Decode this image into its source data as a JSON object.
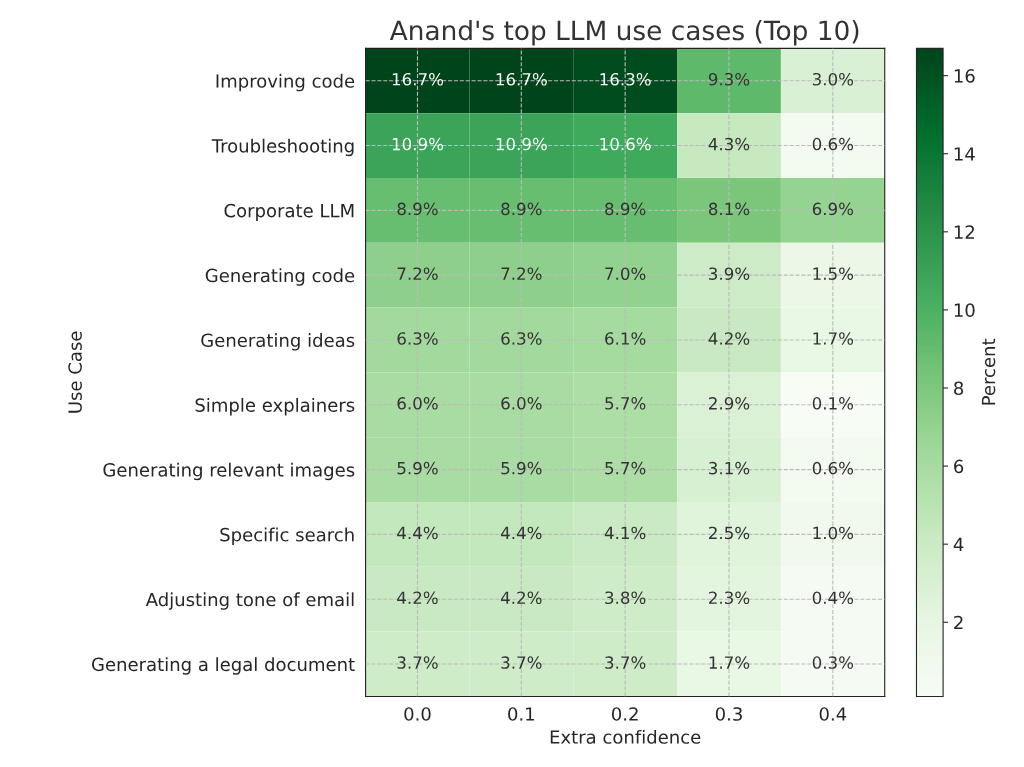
{
  "chart_data": {
    "type": "heatmap",
    "title": "Anand's top LLM use cases (Top 10)",
    "xlabel": "Extra confidence",
    "ylabel": "Use Case",
    "clabel": "Percent",
    "categories": [
      "0.0",
      "0.1",
      "0.2",
      "0.3",
      "0.4"
    ],
    "y_categories": [
      "Improving code",
      "Troubleshooting",
      "Corporate LLM",
      "Generating code",
      "Generating ideas",
      "Simple explainers",
      "Generating relevant images",
      "Specific search",
      "Adjusting tone of email",
      "Generating a legal document"
    ],
    "cells": [
      [
        16.7,
        16.7,
        16.3,
        9.3,
        3.0
      ],
      [
        10.9,
        10.9,
        10.6,
        4.3,
        0.6
      ],
      [
        8.9,
        8.9,
        8.9,
        8.1,
        6.9
      ],
      [
        7.2,
        7.2,
        7.0,
        3.9,
        1.5
      ],
      [
        6.3,
        6.3,
        6.1,
        4.2,
        1.7
      ],
      [
        6.0,
        6.0,
        5.7,
        2.9,
        0.1
      ],
      [
        5.9,
        5.9,
        5.7,
        3.1,
        0.6
      ],
      [
        4.4,
        4.4,
        4.1,
        2.5,
        1.0
      ],
      [
        4.2,
        4.2,
        3.8,
        2.3,
        0.4
      ],
      [
        3.7,
        3.7,
        3.7,
        1.7,
        0.3
      ]
    ],
    "cell_labels": [
      [
        "16.7%",
        "16.7%",
        "16.3%",
        "9.3%",
        "3.0%"
      ],
      [
        "10.9%",
        "10.9%",
        "10.6%",
        "4.3%",
        "0.6%"
      ],
      [
        "8.9%",
        "8.9%",
        "8.9%",
        "8.1%",
        "6.9%"
      ],
      [
        "7.2%",
        "7.2%",
        "7.0%",
        "3.9%",
        "1.5%"
      ],
      [
        "6.3%",
        "6.3%",
        "6.1%",
        "4.2%",
        "1.7%"
      ],
      [
        "6.0%",
        "6.0%",
        "5.7%",
        "2.9%",
        "0.1%"
      ],
      [
        "5.9%",
        "5.9%",
        "5.7%",
        "3.1%",
        "0.6%"
      ],
      [
        "4.4%",
        "4.4%",
        "4.1%",
        "2.5%",
        "1.0%"
      ],
      [
        "4.2%",
        "4.2%",
        "3.8%",
        "2.3%",
        "0.4%"
      ],
      [
        "3.7%",
        "3.7%",
        "3.7%",
        "1.7%",
        "0.3%"
      ]
    ],
    "clim": [
      0.1,
      16.7
    ],
    "cticks": [
      2,
      4,
      6,
      8,
      10,
      12,
      14,
      16
    ],
    "grid": true
  }
}
